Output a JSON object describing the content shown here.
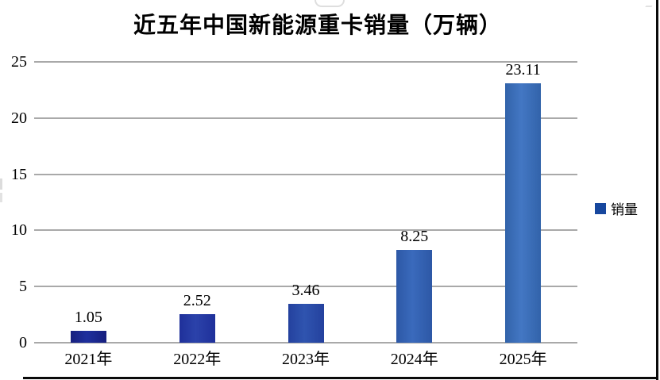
{
  "page": {
    "background": "#ffffff",
    "frame_border_color": "#0a0a0a"
  },
  "chart_data": {
    "type": "bar",
    "title": "近五年中国新能源重卡销量（万辆）",
    "categories": [
      "2021年",
      "2022年",
      "2023年",
      "2024年",
      "2025年"
    ],
    "series": [
      {
        "name": "销量",
        "values": [
          1.05,
          2.52,
          3.46,
          8.25,
          23.11
        ]
      }
    ],
    "value_labels": [
      "1.05",
      "2.52",
      "3.46",
      "8.25",
      "23.11"
    ],
    "xlabel": "",
    "ylabel": "",
    "ylim": [
      0,
      25
    ],
    "y_ticks": [
      0,
      5,
      10,
      15,
      20,
      25
    ],
    "grid": true,
    "gridline_color": "#a9a9a9",
    "legend_position": "right",
    "legend": {
      "label": "销量",
      "swatch_color": "#17479e"
    },
    "bar_colors": [
      {
        "edge": "#161f7e",
        "center": "#1f2f9d"
      },
      {
        "edge": "#1f309a",
        "center": "#2b42aa"
      },
      {
        "edge": "#24419e",
        "center": "#2f54af"
      },
      {
        "edge": "#2d58a6",
        "center": "#3a6abc"
      },
      {
        "edge": "#3263aa",
        "center": "#4377c3"
      }
    ]
  }
}
